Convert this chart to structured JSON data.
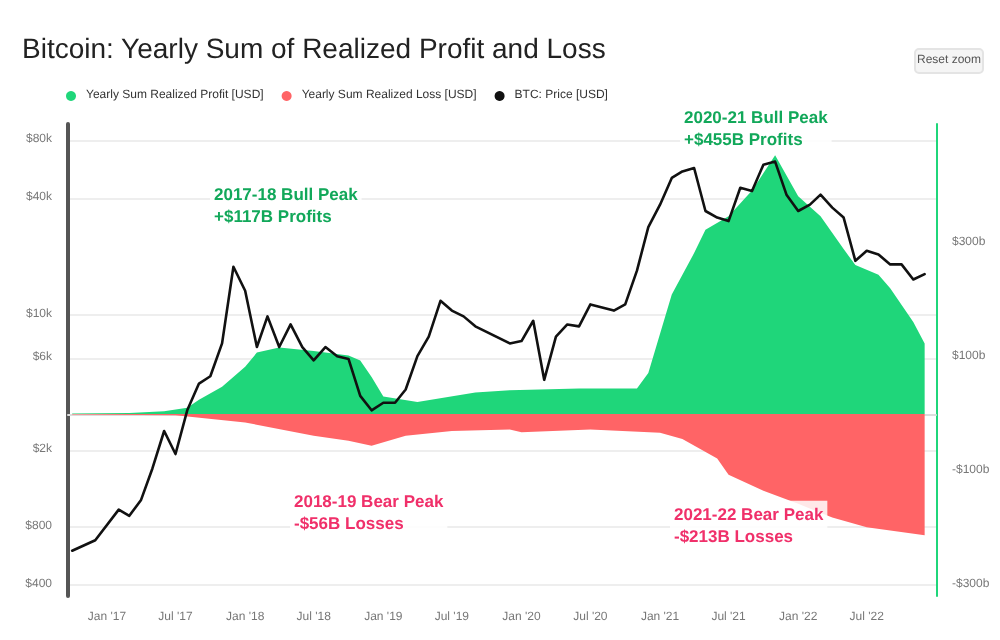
{
  "chart_data": {
    "type": "area",
    "title": "Bitcoin: Yearly Sum of Realized Profit and Loss",
    "series": [
      {
        "name": "Yearly Sum Realized Profit [USD]",
        "color": "#1fd67a",
        "axis": "y2",
        "x": [
          "2016-10",
          "2017-03",
          "2017-06",
          "2017-08",
          "2017-09",
          "2017-11",
          "2018-01",
          "2018-02",
          "2018-04",
          "2018-07",
          "2018-10",
          "2018-11",
          "2018-12",
          "2019-01",
          "2019-04",
          "2019-09",
          "2019-12",
          "2020-06",
          "2020-11",
          "2020-12",
          "2021-01",
          "2021-02",
          "2021-04",
          "2021-05",
          "2021-07",
          "2021-09",
          "2021-11",
          "2022-01",
          "2022-03",
          "2022-05",
          "2022-06",
          "2022-08",
          "2022-09",
          "2022-11",
          "2022-12"
        ],
        "values": [
          1,
          2,
          5,
          11,
          25,
          48,
          83,
          108,
          117,
          111,
          103,
          94,
          65,
          31,
          21,
          38,
          42,
          45,
          45,
          72,
          141,
          210,
          283,
          324,
          348,
          393,
          455,
          383,
          348,
          290,
          262,
          245,
          221,
          162,
          124
        ]
      },
      {
        "name": "Yearly Sum Realized Loss [USD]",
        "color": "#ff6466",
        "axis": "y2",
        "x": [
          "2016-10",
          "2017-07",
          "2018-01",
          "2018-07",
          "2018-10",
          "2018-12",
          "2019-03",
          "2019-07",
          "2019-12",
          "2020-01",
          "2020-07",
          "2021-01",
          "2021-03",
          "2021-06",
          "2021-07",
          "2021-10",
          "2022-01",
          "2022-04",
          "2022-07",
          "2022-12"
        ],
        "values": [
          -1,
          -2,
          -15,
          -38,
          -47,
          -56,
          -38,
          -30,
          -27,
          -32,
          -27,
          -33,
          -44,
          -78,
          -107,
          -135,
          -158,
          -182,
          -199,
          -213
        ]
      },
      {
        "name": "BTC: Price [USD]",
        "color": "#111111",
        "type": "line",
        "x": [
          "2016-10",
          "2016-12",
          "2017-02",
          "2017-03",
          "2017-04",
          "2017-05",
          "2017-06",
          "2017-07",
          "2017-08",
          "2017-09",
          "2017-10",
          "2017-11",
          "2017-12",
          "2018-01",
          "2018-02",
          "2018-03",
          "2018-04",
          "2018-05",
          "2018-06",
          "2018-07",
          "2018-08",
          "2018-09",
          "2018-10",
          "2018-11",
          "2018-12",
          "2019-01",
          "2019-02",
          "2019-03",
          "2019-04",
          "2019-05",
          "2019-06",
          "2019-07",
          "2019-08",
          "2019-09",
          "2019-12",
          "2020-01",
          "2020-02",
          "2020-03",
          "2020-04",
          "2020-05",
          "2020-06",
          "2020-07",
          "2020-09",
          "2020-10",
          "2020-11",
          "2020-12",
          "2021-01",
          "2021-02",
          "2021-03",
          "2021-04",
          "2021-05",
          "2021-06",
          "2021-07",
          "2021-08",
          "2021-09",
          "2021-10",
          "2021-11",
          "2021-12",
          "2022-01",
          "2022-02",
          "2022-03",
          "2022-04",
          "2022-05",
          "2022-06",
          "2022-07",
          "2022-08",
          "2022-09",
          "2022-10",
          "2022-11",
          "2022-12"
        ],
        "values": [
          600,
          680,
          980,
          910,
          1100,
          1600,
          2500,
          1900,
          3200,
          4400,
          4800,
          7100,
          17700,
          13300,
          6800,
          9800,
          6800,
          8900,
          6800,
          5800,
          6800,
          6100,
          5900,
          3800,
          3200,
          3500,
          3500,
          4100,
          6100,
          7700,
          11800,
          10500,
          9800,
          8700,
          7100,
          7300,
          9300,
          4600,
          7700,
          8900,
          8700,
          11300,
          10500,
          11300,
          16900,
          28400,
          37100,
          51000,
          55100,
          57400,
          34400,
          31800,
          30500,
          45400,
          43600,
          59700,
          62000,
          41800,
          34400,
          37100,
          41800,
          35800,
          31800,
          19000,
          21400,
          20500,
          18200,
          18200,
          15200,
          16200
        ]
      }
    ],
    "xlim": [
      "2016-09-20",
      "2022-12-31"
    ],
    "xticks": [
      {
        "value": "2017-01-01",
        "label": "Jan '17"
      },
      {
        "value": "2017-07-01",
        "label": "Jul '17"
      },
      {
        "value": "2018-01-01",
        "label": "Jan '18"
      },
      {
        "value": "2018-07-01",
        "label": "Jul '18"
      },
      {
        "value": "2019-01-01",
        "label": "Jan '19"
      },
      {
        "value": "2019-07-01",
        "label": "Jul '19"
      },
      {
        "value": "2020-01-01",
        "label": "Jan '20"
      },
      {
        "value": "2020-07-01",
        "label": "Jul '20"
      },
      {
        "value": "2021-01-01",
        "label": "Jan '21"
      },
      {
        "value": "2021-07-01",
        "label": "Jul '21"
      },
      {
        "value": "2022-01-01",
        "label": "Jan '22"
      },
      {
        "value": "2022-07-01",
        "label": "Jul '22"
      }
    ],
    "ylim": [
      350,
      97000
    ],
    "yticks": [
      {
        "value": 400,
        "label": "$400"
      },
      {
        "value": 800,
        "label": "$800"
      },
      {
        "value": 2000,
        "label": "$2k"
      },
      {
        "value": 6000,
        "label": "$6k"
      },
      {
        "value": 10000,
        "label": "$10k"
      },
      {
        "value": 40000,
        "label": "$40k"
      },
      {
        "value": 80000,
        "label": "$80k"
      }
    ],
    "y2lim": [
      -320,
      510
    ],
    "y2ticks": [
      {
        "value": -300,
        "label": "-$300b"
      },
      {
        "value": -100,
        "label": "-$100b"
      },
      {
        "value": 100,
        "label": "$100b"
      },
      {
        "value": 300,
        "label": "$300b"
      }
    ],
    "log": "y",
    "grid": "y",
    "legend": "top",
    "marker": "none",
    "line_style": "solid",
    "annotations": [
      "2017-18 Bull Peak\n+$117B Profits",
      "2018-19 Bear Peak\n-$56B Losses",
      "2020-21 Bull Peak\n+$455B Profits",
      "2021-22 Bear Peak\n-$213B Losses",
      "Reset zoom"
    ]
  }
}
